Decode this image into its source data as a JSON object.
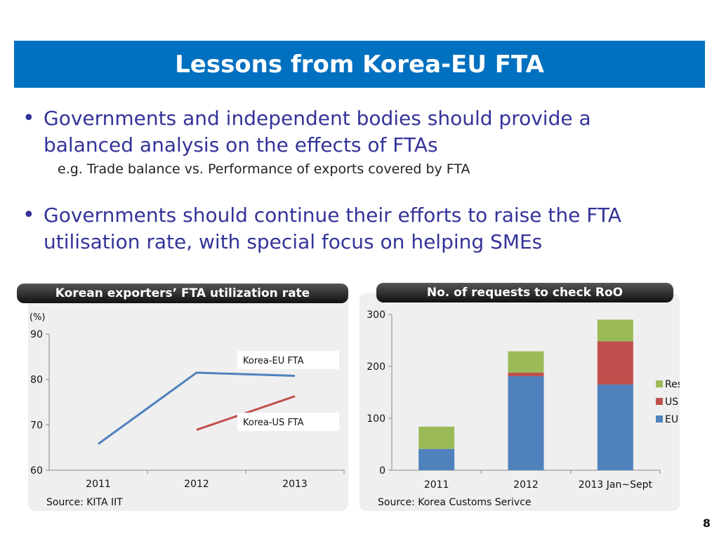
{
  "header": {
    "title": "Lessons from Korea-EU FTA"
  },
  "bullets": [
    {
      "text": "Governments and independent bodies should provide a balanced analysis on the effects of FTAs",
      "sub": "e.g. Trade balance vs. Performance of exports covered by FTA"
    },
    {
      "text": "Governments should continue their efforts to raise the FTA utilisation rate, with special focus on helping SMEs"
    }
  ],
  "panels": {
    "left": {
      "title": "Korean exporters’ FTA utilization rate",
      "source": "Source: KITA IIT"
    },
    "right": {
      "title": "No. of requests to check RoO",
      "source": "Source: Korea Customs Serivce"
    }
  },
  "page_number": "8",
  "colors": {
    "title_bg": "#0070c0",
    "bullet_text": "#333399",
    "eu": "#4f81bd",
    "us": "#c0504d",
    "rest": "#9bbb59"
  },
  "chart_data": [
    {
      "type": "line",
      "x": [
        "2011",
        "2012",
        "2013"
      ],
      "ylabel": "(%)",
      "ylim": [
        60,
        90
      ],
      "yticks": [
        60,
        70,
        80,
        90
      ],
      "grid": false,
      "series": [
        {
          "name": "Korea-EU FTA",
          "color": "#4f81bd",
          "values": [
            65.8,
            81.5,
            80.8
          ]
        },
        {
          "name": "Korea-US FTA",
          "color": "#c0504d",
          "values": [
            null,
            68.9,
            76.3
          ]
        }
      ]
    },
    {
      "type": "bar",
      "stacked": true,
      "categories": [
        "2011",
        "2012",
        "2013 Jan~Sept"
      ],
      "ylim": [
        0,
        300
      ],
      "yticks": [
        0,
        100,
        200,
        300
      ],
      "legend": "right",
      "series": [
        {
          "name": "EU",
          "color": "#4f81bd",
          "values": [
            41,
            181,
            165
          ]
        },
        {
          "name": "US",
          "color": "#c0504d",
          "values": [
            0,
            7,
            83
          ]
        },
        {
          "name": "Rest",
          "color": "#9bbb59",
          "values": [
            43,
            41,
            42
          ]
        }
      ]
    }
  ]
}
